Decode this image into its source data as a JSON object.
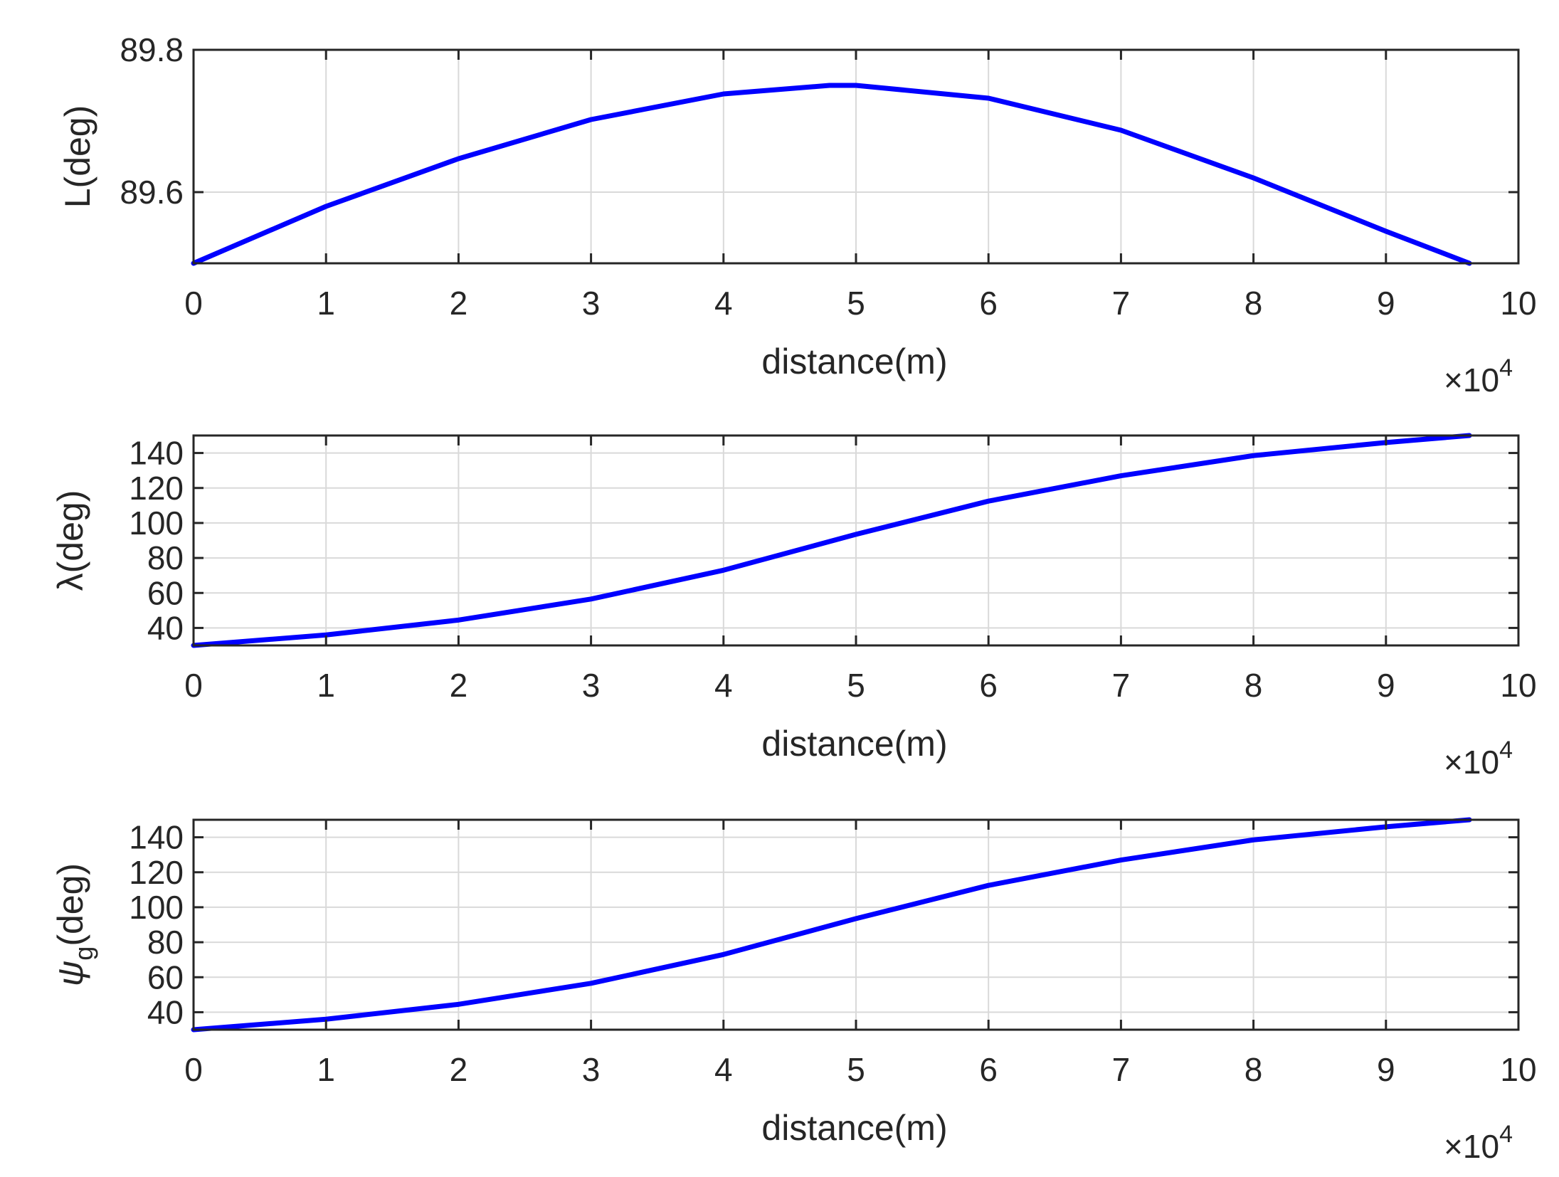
{
  "colors": {
    "series": "#0000ff",
    "axis": "#262626",
    "grid": "#d9d9d9",
    "background": "#ffffff"
  },
  "chart_data": [
    {
      "type": "line",
      "xlabel": "distance(m)",
      "ylabel": "L(deg)",
      "x_exponent": "×10⁴",
      "x_exponent_base": "×10",
      "x_exponent_power": "4",
      "xlim": [
        0,
        10
      ],
      "ylim": [
        89.5,
        89.8
      ],
      "xticks": [
        "0",
        "1",
        "2",
        "3",
        "4",
        "5",
        "6",
        "7",
        "8",
        "9",
        "10"
      ],
      "yticks": [
        89.6,
        89.8
      ],
      "ytick_labels": [
        "89.6",
        "89.8"
      ],
      "grid": true,
      "series": [
        {
          "x": [
            0,
            1,
            2,
            3,
            4,
            4.8,
            5,
            6,
            7,
            8,
            9,
            9.63
          ],
          "y": [
            89.5,
            89.58,
            89.647,
            89.702,
            89.738,
            89.75,
            89.75,
            89.732,
            89.687,
            89.62,
            89.545,
            89.5
          ]
        }
      ]
    },
    {
      "type": "line",
      "xlabel": "distance(m)",
      "ylabel": "λ(deg)",
      "x_exponent": "×10⁴",
      "x_exponent_base": "×10",
      "x_exponent_power": "4",
      "xlim": [
        0,
        10
      ],
      "ylim": [
        30,
        150
      ],
      "xticks": [
        "0",
        "1",
        "2",
        "3",
        "4",
        "5",
        "6",
        "7",
        "8",
        "9",
        "10"
      ],
      "yticks": [
        40,
        60,
        80,
        100,
        120,
        140
      ],
      "ytick_labels": [
        "40",
        "60",
        "80",
        "100",
        "120",
        "140"
      ],
      "grid": true,
      "series": [
        {
          "x": [
            0,
            1,
            2,
            3,
            4,
            5,
            6,
            7,
            8,
            9,
            9.63
          ],
          "y": [
            30,
            36,
            44.5,
            56.5,
            73,
            93.5,
            112.5,
            127,
            138.5,
            146,
            150
          ]
        }
      ]
    },
    {
      "type": "line",
      "xlabel": "distance(m)",
      "ylabel": "ψ",
      "ylabel_subscript": "g",
      "ylabel_suffix": "(deg)",
      "x_exponent": "×10⁴",
      "x_exponent_base": "×10",
      "x_exponent_power": "4",
      "xlim": [
        0,
        10
      ],
      "ylim": [
        30,
        150
      ],
      "xticks": [
        "0",
        "1",
        "2",
        "3",
        "4",
        "5",
        "6",
        "7",
        "8",
        "9",
        "10"
      ],
      "yticks": [
        40,
        60,
        80,
        100,
        120,
        140
      ],
      "ytick_labels": [
        "40",
        "60",
        "80",
        "100",
        "120",
        "140"
      ],
      "grid": true,
      "series": [
        {
          "x": [
            0,
            1,
            2,
            3,
            4,
            5,
            6,
            7,
            8,
            9,
            9.63
          ],
          "y": [
            30,
            36,
            44.5,
            56.5,
            73,
            93.5,
            112.5,
            127,
            138.5,
            146,
            150
          ]
        }
      ]
    }
  ]
}
